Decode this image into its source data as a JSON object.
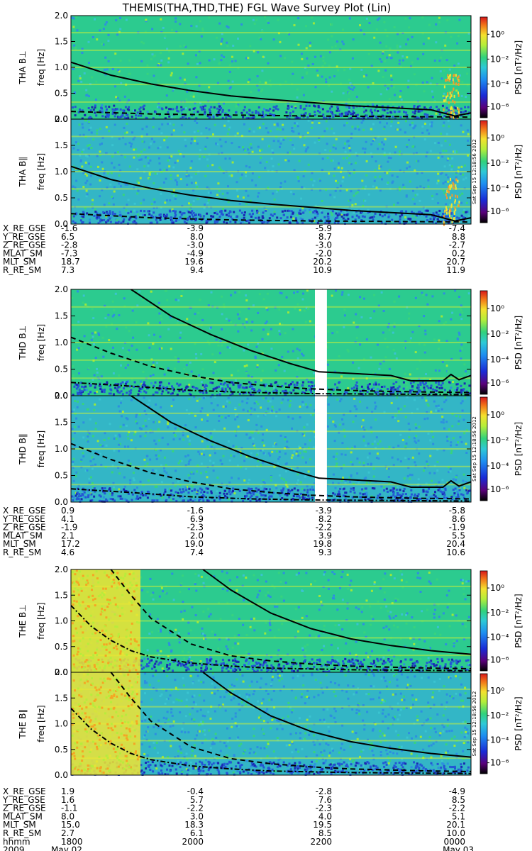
{
  "title": "THEMIS(THA,THD,THE) FGL Wave Survey Plot (Lin)",
  "colors": {
    "bg_green": "#2ccb8f",
    "bg_cyan": "#33b6c6",
    "low_blue": "#2457d4",
    "noise_yellow": "#c6ef3a",
    "hot_yellow": "#f2e531"
  },
  "colorbar": {
    "label": "PSD [nT²/Hz]",
    "ticks": [
      "10⁰",
      "10⁻²",
      "10⁻⁴",
      "10⁻⁶"
    ],
    "stamp": "Sat Sep 15 12:18:56 2012"
  },
  "chart_data": [
    {
      "type": "heatmap",
      "panel": "THA B⊥",
      "ylabel_name": "THA B⊥",
      "ylabel_unit": "freq [Hz]",
      "ylim": [
        0,
        2
      ],
      "yticks": [
        "0.0",
        "0.5",
        "1.0",
        "1.5",
        "2.0"
      ],
      "colorbar": "PSD [nT²/Hz]",
      "solid_line": [
        [
          0,
          1.1
        ],
        [
          0.1,
          0.85
        ],
        [
          0.2,
          0.68
        ],
        [
          0.3,
          0.55
        ],
        [
          0.4,
          0.45
        ],
        [
          0.5,
          0.38
        ],
        [
          0.6,
          0.32
        ],
        [
          0.7,
          0.26
        ],
        [
          0.8,
          0.22
        ],
        [
          0.9,
          0.18
        ],
        [
          0.96,
          0.06
        ],
        [
          1.0,
          0.12
        ]
      ],
      "dashed_line": [
        [
          0,
          0.15
        ],
        [
          0.2,
          0.1
        ],
        [
          0.4,
          0.08
        ],
        [
          0.6,
          0.06
        ],
        [
          0.8,
          0.05
        ],
        [
          1.0,
          0.04
        ]
      ]
    },
    {
      "type": "heatmap",
      "panel": "THA B∥",
      "ylabel_name": "THA B∥",
      "ylabel_unit": "freq [Hz]",
      "ylim": [
        0,
        2
      ],
      "yticks": [
        "0.0",
        "0.5",
        "1.0",
        "1.5",
        "2.0"
      ],
      "colorbar": "PSD [nT²/Hz]",
      "solid_line": [
        [
          0,
          1.1
        ],
        [
          0.1,
          0.85
        ],
        [
          0.2,
          0.68
        ],
        [
          0.3,
          0.55
        ],
        [
          0.4,
          0.45
        ],
        [
          0.5,
          0.38
        ],
        [
          0.6,
          0.32
        ],
        [
          0.7,
          0.26
        ],
        [
          0.8,
          0.22
        ],
        [
          0.9,
          0.18
        ],
        [
          0.96,
          0.06
        ],
        [
          1.0,
          0.12
        ]
      ],
      "dashed_line": [
        [
          0,
          0.2
        ],
        [
          0.2,
          0.12
        ],
        [
          0.4,
          0.08
        ],
        [
          0.6,
          0.06
        ],
        [
          0.8,
          0.05
        ],
        [
          1.0,
          0.04
        ]
      ]
    },
    {
      "type": "heatmap",
      "panel": "THD B⊥",
      "ylabel_name": "THD B⊥",
      "ylabel_unit": "freq [Hz]",
      "ylim": [
        0,
        2
      ],
      "yticks": [
        "0.0",
        "0.5",
        "1.0",
        "1.5",
        "2.0"
      ],
      "colorbar": "PSD [nT²/Hz]",
      "data_gap": [
        0.61,
        0.64
      ],
      "solid_line": [
        [
          0.15,
          2.0
        ],
        [
          0.25,
          1.5
        ],
        [
          0.35,
          1.15
        ],
        [
          0.45,
          0.85
        ],
        [
          0.55,
          0.6
        ],
        [
          0.62,
          0.45
        ],
        [
          0.7,
          0.42
        ],
        [
          0.8,
          0.38
        ],
        [
          0.85,
          0.28
        ],
        [
          0.93,
          0.28
        ],
        [
          0.95,
          0.4
        ],
        [
          0.97,
          0.3
        ],
        [
          1.0,
          0.38
        ]
      ],
      "dashed_line": [
        [
          0,
          1.1
        ],
        [
          0.1,
          0.8
        ],
        [
          0.2,
          0.55
        ],
        [
          0.3,
          0.38
        ],
        [
          0.4,
          0.25
        ],
        [
          0.5,
          0.18
        ],
        [
          0.6,
          0.13
        ],
        [
          0.7,
          0.1
        ],
        [
          0.8,
          0.08
        ],
        [
          0.9,
          0.07
        ],
        [
          1.0,
          0.06
        ]
      ],
      "dashdot_line": [
        [
          0,
          0.25
        ],
        [
          0.15,
          0.18
        ],
        [
          0.3,
          0.1
        ],
        [
          0.45,
          0.06
        ],
        [
          0.6,
          0.04
        ],
        [
          1.0,
          0.02
        ]
      ]
    },
    {
      "type": "heatmap",
      "panel": "THD B∥",
      "ylabel_name": "THD B∥",
      "ylabel_unit": "freq [Hz]",
      "ylim": [
        0,
        2
      ],
      "yticks": [
        "0.0",
        "0.5",
        "1.0",
        "1.5",
        "2.0"
      ],
      "colorbar": "PSD [nT²/Hz]",
      "data_gap": [
        0.61,
        0.64
      ],
      "solid_line": [
        [
          0.15,
          2.0
        ],
        [
          0.25,
          1.5
        ],
        [
          0.35,
          1.15
        ],
        [
          0.45,
          0.85
        ],
        [
          0.55,
          0.6
        ],
        [
          0.62,
          0.45
        ],
        [
          0.7,
          0.42
        ],
        [
          0.8,
          0.38
        ],
        [
          0.85,
          0.28
        ],
        [
          0.93,
          0.28
        ],
        [
          0.95,
          0.4
        ],
        [
          0.97,
          0.3
        ],
        [
          1.0,
          0.38
        ]
      ],
      "dashed_line": [
        [
          0,
          1.1
        ],
        [
          0.1,
          0.8
        ],
        [
          0.2,
          0.55
        ],
        [
          0.3,
          0.38
        ],
        [
          0.4,
          0.25
        ],
        [
          0.5,
          0.18
        ],
        [
          0.6,
          0.13
        ],
        [
          0.7,
          0.1
        ],
        [
          0.8,
          0.08
        ],
        [
          0.9,
          0.07
        ],
        [
          1.0,
          0.06
        ]
      ],
      "dashdot_line": [
        [
          0,
          0.25
        ],
        [
          0.15,
          0.18
        ],
        [
          0.3,
          0.1
        ],
        [
          0.45,
          0.06
        ],
        [
          0.6,
          0.04
        ],
        [
          1.0,
          0.02
        ]
      ]
    },
    {
      "type": "heatmap",
      "panel": "THE B⊥",
      "ylabel_name": "THE B⊥",
      "ylabel_unit": "freq [Hz]",
      "ylim": [
        0,
        2
      ],
      "yticks": [
        "0.0",
        "0.5",
        "1.0",
        "1.5",
        "2.0"
      ],
      "colorbar": "PSD [nT²/Hz]",
      "solid_line": [
        [
          0.33,
          2.0
        ],
        [
          0.4,
          1.6
        ],
        [
          0.5,
          1.15
        ],
        [
          0.6,
          0.85
        ],
        [
          0.7,
          0.65
        ],
        [
          0.8,
          0.52
        ],
        [
          0.9,
          0.42
        ],
        [
          1.0,
          0.35
        ]
      ],
      "dashed_line": [
        [
          0.1,
          2.0
        ],
        [
          0.15,
          1.5
        ],
        [
          0.2,
          1.05
        ],
        [
          0.3,
          0.55
        ],
        [
          0.4,
          0.32
        ],
        [
          0.5,
          0.22
        ],
        [
          0.6,
          0.16
        ],
        [
          0.7,
          0.12
        ],
        [
          0.8,
          0.1
        ],
        [
          0.9,
          0.08
        ],
        [
          1.0,
          0.07
        ]
      ],
      "dashdot_line": [
        [
          0,
          1.3
        ],
        [
          0.05,
          0.9
        ],
        [
          0.1,
          0.62
        ],
        [
          0.15,
          0.42
        ],
        [
          0.2,
          0.3
        ],
        [
          0.3,
          0.18
        ],
        [
          0.4,
          0.12
        ],
        [
          0.5,
          0.08
        ],
        [
          0.7,
          0.05
        ],
        [
          1.0,
          0.03
        ]
      ]
    },
    {
      "type": "heatmap",
      "panel": "THE B∥",
      "ylabel_name": "THE B∥",
      "ylabel_unit": "freq [Hz]",
      "ylim": [
        0,
        2
      ],
      "yticks": [
        "0.0",
        "0.5",
        "1.0",
        "1.5",
        "2.0"
      ],
      "colorbar": "PSD [nT²/Hz]",
      "solid_line": [
        [
          0.33,
          2.0
        ],
        [
          0.4,
          1.6
        ],
        [
          0.5,
          1.15
        ],
        [
          0.6,
          0.85
        ],
        [
          0.7,
          0.65
        ],
        [
          0.8,
          0.52
        ],
        [
          0.9,
          0.42
        ],
        [
          1.0,
          0.35
        ]
      ],
      "dashed_line": [
        [
          0.1,
          2.0
        ],
        [
          0.15,
          1.5
        ],
        [
          0.2,
          1.05
        ],
        [
          0.3,
          0.55
        ],
        [
          0.4,
          0.32
        ],
        [
          0.5,
          0.22
        ],
        [
          0.6,
          0.16
        ],
        [
          0.7,
          0.12
        ],
        [
          0.8,
          0.1
        ],
        [
          0.9,
          0.08
        ],
        [
          1.0,
          0.07
        ]
      ],
      "dashdot_line": [
        [
          0,
          1.3
        ],
        [
          0.05,
          0.9
        ],
        [
          0.1,
          0.62
        ],
        [
          0.15,
          0.42
        ],
        [
          0.2,
          0.3
        ],
        [
          0.3,
          0.18
        ],
        [
          0.4,
          0.12
        ],
        [
          0.5,
          0.08
        ],
        [
          0.7,
          0.05
        ],
        [
          1.0,
          0.03
        ]
      ]
    }
  ],
  "ephemeris": [
    {
      "rows": [
        {
          "label": "X_RE_GSE",
          "values": [
            "-1.6",
            "-3.9",
            "-5.9",
            "-7.4"
          ]
        },
        {
          "label": "Y_RE_GSE",
          "values": [
            "6.5",
            "8.0",
            "8.7",
            "8.8"
          ]
        },
        {
          "label": "Z_RE_GSE",
          "values": [
            "-2.8",
            "-3.0",
            "-3.0",
            "-2.7"
          ]
        },
        {
          "label": "MLAT_SM",
          "values": [
            "-7.3",
            "-4.9",
            "-2.0",
            "0.2"
          ]
        },
        {
          "label": "MLT_SM",
          "values": [
            "18.7",
            "19.6",
            "20.2",
            "20.7"
          ]
        },
        {
          "label": "R_RE_SM",
          "values": [
            "7.3",
            "9.4",
            "10.9",
            "11.9"
          ]
        }
      ]
    },
    {
      "rows": [
        {
          "label": "X_RE_GSE",
          "values": [
            "0.9",
            "-1.6",
            "-3.9",
            "-5.8"
          ]
        },
        {
          "label": "Y_RE_GSE",
          "values": [
            "4.1",
            "6.9",
            "8.2",
            "8.6"
          ]
        },
        {
          "label": "Z_RE_GSE",
          "values": [
            "-1.9",
            "-2.3",
            "-2.2",
            "-1.9"
          ]
        },
        {
          "label": "MLAT_SM",
          "values": [
            "2.1",
            "2.0",
            "3.9",
            "5.5"
          ]
        },
        {
          "label": "MLT_SM",
          "values": [
            "17.2",
            "19.0",
            "19.8",
            "20.4"
          ]
        },
        {
          "label": "R_RE_SM",
          "values": [
            "4.6",
            "7.4",
            "9.3",
            "10.6"
          ]
        }
      ]
    },
    {
      "rows": [
        {
          "label": "X_RE_GSE",
          "values": [
            "1.9",
            "-0.4",
            "-2.8",
            "-4.9"
          ]
        },
        {
          "label": "Y_RE_GSE",
          "values": [
            "1.6",
            "5.7",
            "7.6",
            "8.5"
          ]
        },
        {
          "label": "Z_RE_GSE",
          "values": [
            "-1.1",
            "-2.2",
            "-2.3",
            "-2.2"
          ]
        },
        {
          "label": "MLAT_SM",
          "values": [
            "8.0",
            "3.0",
            "4.0",
            "5.1"
          ]
        },
        {
          "label": "MLT_SM",
          "values": [
            "15.0",
            "18.3",
            "19.5",
            "20.1"
          ]
        },
        {
          "label": "R_RE_SM",
          "values": [
            "2.7",
            "6.1",
            "8.5",
            "10.0"
          ]
        },
        {
          "label": "hhmm",
          "values": [
            "1800",
            "2000",
            "2200",
            "0000"
          ]
        }
      ],
      "date_row": {
        "label": "2009",
        "start": "May 02",
        "end": "May 03"
      }
    }
  ]
}
